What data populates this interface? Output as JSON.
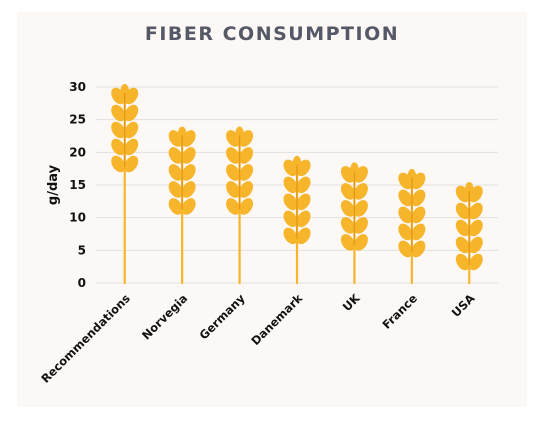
{
  "chart_data": {
    "type": "bar",
    "title": "FIBER CONSUMPTION",
    "xlabel": "",
    "ylabel": "g/day",
    "categories": [
      "Recommendations",
      "Norvegia",
      "Germany",
      "Danemark",
      "UK",
      "France",
      "USA"
    ],
    "values": [
      30,
      23.5,
      23.5,
      19,
      18,
      17,
      15
    ],
    "ylim": [
      0,
      30
    ],
    "yticks": [
      0,
      5,
      10,
      15,
      20,
      25,
      30
    ],
    "grid": true,
    "legend": "none",
    "bar_style": "wheat-stalk-icon",
    "colors": {
      "wheat": "#f7b52c",
      "wheat_dark": "#e69a14",
      "grid": "#e4e0de",
      "background": "#fcf8f6",
      "title": "#555866",
      "text": "#111111"
    }
  }
}
